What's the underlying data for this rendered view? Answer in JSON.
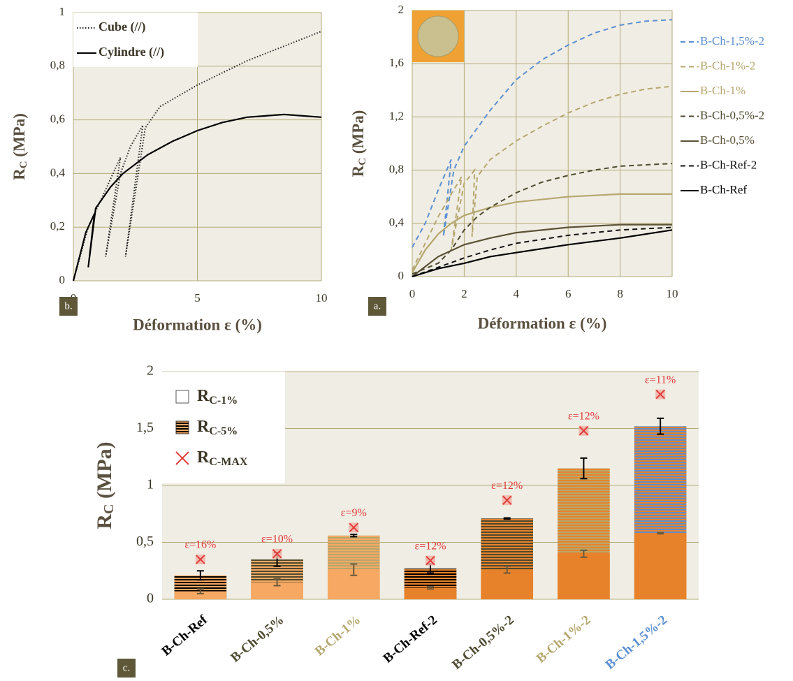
{
  "chart_data": [
    {
      "type": "line",
      "panel": "b.",
      "xlabel": "Déformation ε (%)",
      "ylabel": [
        "R",
        "C",
        " (MPa)"
      ],
      "xlim": [
        0,
        10
      ],
      "xticks": [
        0,
        5,
        10
      ],
      "ylim": [
        0,
        1
      ],
      "yticks": [
        0,
        {
          "value": 0.2,
          "label": "0,2"
        },
        {
          "value": 0.4,
          "label": "0,4"
        },
        {
          "value": 0.6,
          "label": "0,6"
        },
        {
          "value": 0.8,
          "label": "0,8"
        },
        1
      ],
      "grid": true,
      "legend": "top-left",
      "series": [
        {
          "name": "Cube (//)",
          "color": "#222222",
          "dash": "dotted",
          "x": [
            0,
            0.3,
            0.6,
            1,
            1.5,
            1.9,
            1.3,
            1.9,
            2.3,
            2.8,
            2.1,
            2.9,
            3.5,
            5,
            7,
            10
          ],
          "values": [
            0,
            0.1,
            0.2,
            0.28,
            0.38,
            0.46,
            0.09,
            0.4,
            0.5,
            0.58,
            0.09,
            0.57,
            0.65,
            0.73,
            0.82,
            0.93
          ]
        },
        {
          "name": "Cylindre (//)",
          "color": "#000000",
          "dash": "solid",
          "x": [
            0,
            0.5,
            0.85,
            0.6,
            0.9,
            1.5,
            2,
            3,
            4,
            5,
            6,
            7,
            8.5,
            10
          ],
          "values": [
            0,
            0.18,
            0.25,
            0.05,
            0.27,
            0.35,
            0.4,
            0.47,
            0.52,
            0.56,
            0.59,
            0.61,
            0.62,
            0.61
          ]
        }
      ]
    },
    {
      "type": "line",
      "panel": "a.",
      "xlabel": "Déformation ε (%)",
      "ylabel": [
        "R",
        "C",
        " (MPa)"
      ],
      "xlim": [
        0,
        10
      ],
      "xticks": [
        0,
        2,
        4,
        6,
        8,
        10
      ],
      "ylim": [
        0,
        2
      ],
      "yticks": [
        0,
        {
          "value": 0.4,
          "label": "0,4"
        },
        {
          "value": 0.8,
          "label": "0,8"
        },
        {
          "value": 1.2,
          "label": "1,2"
        },
        {
          "value": 1.6,
          "label": "1,6"
        },
        2
      ],
      "grid": true,
      "legend": "right",
      "series": [
        {
          "name": "B-Ch-1,5%-2",
          "color": "#5b8fd0",
          "dash": "dashed",
          "x": [
            0,
            0.5,
            1,
            1.5,
            1.2,
            1.6,
            2,
            3,
            4,
            5,
            6,
            7,
            8,
            9,
            10
          ],
          "values": [
            0.22,
            0.4,
            0.65,
            0.88,
            0.3,
            0.8,
            0.98,
            1.25,
            1.48,
            1.63,
            1.74,
            1.83,
            1.89,
            1.92,
            1.93
          ]
        },
        {
          "name": "B-Ch-1%-2",
          "color": "#b5a76e",
          "dash": "dashed",
          "x": [
            0,
            0.5,
            1,
            1.5,
            1.9,
            1.5,
            2,
            2.4,
            2.3,
            2.5,
            3,
            4,
            5,
            6,
            7,
            8,
            9,
            10
          ],
          "values": [
            0.05,
            0.25,
            0.45,
            0.62,
            0.75,
            0.2,
            0.7,
            0.8,
            0.3,
            0.75,
            0.88,
            1.02,
            1.13,
            1.23,
            1.31,
            1.37,
            1.41,
            1.43
          ]
        },
        {
          "name": "B-Ch-1%",
          "color": "#b5a76e",
          "dash": "solid",
          "x": [
            0,
            0.5,
            1,
            1.5,
            2,
            3,
            4,
            6,
            8,
            10
          ],
          "values": [
            0.03,
            0.2,
            0.32,
            0.4,
            0.46,
            0.52,
            0.56,
            0.6,
            0.62,
            0.62
          ]
        },
        {
          "name": "B-Ch-0,5%-2",
          "color": "#4e4a30",
          "dash": "dashed",
          "x": [
            0,
            1,
            1.5,
            2,
            2.5,
            3,
            4,
            5,
            6,
            7,
            8,
            10
          ],
          "values": [
            0.02,
            0.1,
            0.2,
            0.35,
            0.45,
            0.52,
            0.63,
            0.71,
            0.76,
            0.8,
            0.83,
            0.85
          ]
        },
        {
          "name": "B-Ch-0,5%",
          "color": "#5a5235",
          "dash": "solid",
          "x": [
            0,
            1,
            2,
            3,
            4,
            6,
            8,
            10
          ],
          "values": [
            0,
            0.15,
            0.24,
            0.29,
            0.33,
            0.37,
            0.39,
            0.39
          ]
        },
        {
          "name": "B-Ch-Ref-2",
          "color": "#111111",
          "dash": "dashed",
          "x": [
            0,
            1,
            2,
            3,
            4,
            6,
            8,
            10
          ],
          "values": [
            0,
            0.07,
            0.14,
            0.2,
            0.25,
            0.31,
            0.35,
            0.37
          ]
        },
        {
          "name": "B-Ch-Ref",
          "color": "#000000",
          "dash": "solid",
          "x": [
            0,
            1,
            2,
            3,
            4,
            6,
            8,
            10
          ],
          "values": [
            0,
            0.06,
            0.1,
            0.15,
            0.18,
            0.24,
            0.29,
            0.35
          ]
        }
      ]
    },
    {
      "type": "bar",
      "panel": "c.",
      "ylabel": [
        "R",
        "C",
        " (MPa)"
      ],
      "categories": [
        "B-Ch-Ref",
        "B-Ch-0,5%",
        "B-Ch-1%",
        "B-Ch-Ref-2",
        "B-Ch-0,5%-2",
        "B-Ch-1%-2",
        "B-Ch-1,5%-2"
      ],
      "category_colors": [
        "#000000",
        "#4e4a30",
        "#b5a76e",
        "#000000",
        "#4e4a30",
        "#b5a76e",
        "#5b8fd0"
      ],
      "bar_colors": [
        "#f7a862",
        "#f7a862",
        "#f7a862",
        "#e8822a",
        "#e8822a",
        "#e8822a",
        "#e8822a"
      ],
      "ylim": [
        0,
        2
      ],
      "yticks": [
        0,
        {
          "value": 0.5,
          "label": "0,5"
        },
        1,
        {
          "value": 1.5,
          "label": "1,5"
        },
        2
      ],
      "grid": true,
      "legend": "top-left",
      "series": [
        {
          "name": "R",
          "name_sub": "C-1%",
          "style": "solid",
          "values": [
            0.07,
            0.15,
            0.26,
            0.1,
            0.26,
            0.4,
            0.58
          ],
          "errors": [
            0.02,
            0.03,
            0.05,
            0.01,
            0.03,
            0.03,
            0.005
          ]
        },
        {
          "name": "R",
          "name_sub": "C-5%",
          "style": "hatched",
          "values": [
            0.21,
            0.35,
            0.56,
            0.27,
            0.71,
            1.15,
            1.52
          ],
          "errors": [
            0.04,
            0.06,
            0.01,
            0.04,
            0.005,
            0.09,
            0.07
          ]
        },
        {
          "name": "R",
          "name_sub": "C-MAX",
          "style": "cross",
          "color": "#e23b3b",
          "values": [
            0.35,
            0.4,
            0.63,
            0.34,
            0.87,
            1.48,
            1.8
          ],
          "value_notes": [
            "ε=16%",
            "ε=10%",
            "ε=9%",
            "ε=12%",
            "ε=12%",
            "ε=12%",
            "ε=11%"
          ]
        }
      ]
    }
  ]
}
